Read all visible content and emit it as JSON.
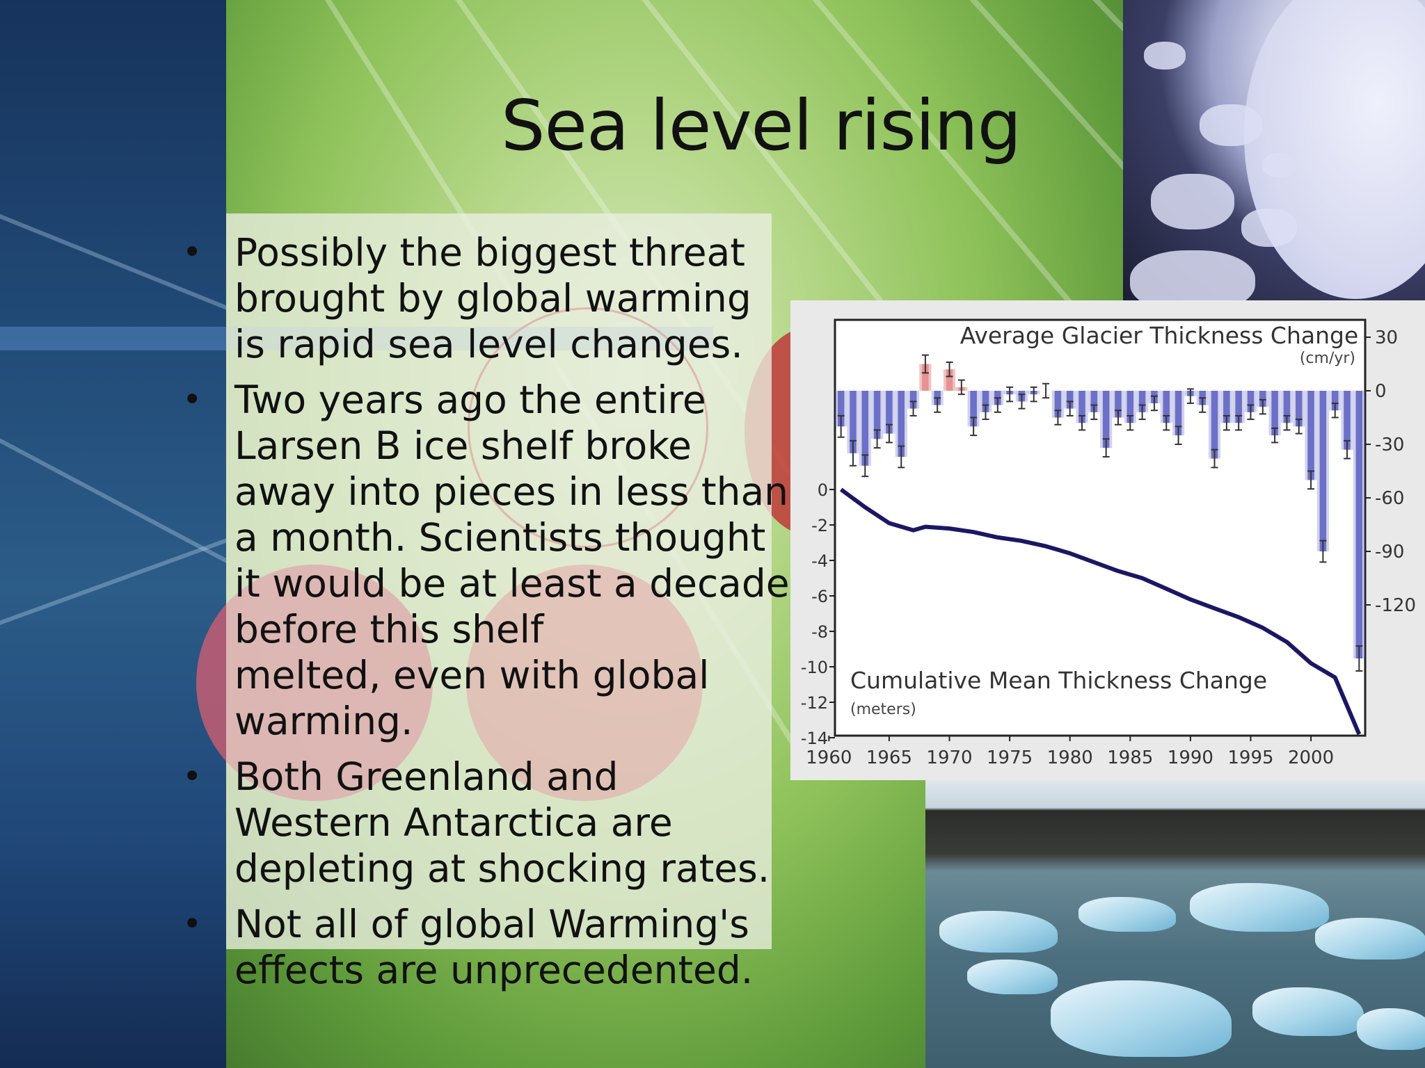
{
  "slide": {
    "title": "Sea level rising",
    "bullets": [
      {
        "text": "Possibly the biggest threat\nbrought by global warming\nis rapid sea level changes."
      },
      {
        "text": "Two years ago the entire\nLarsen B ice shelf broke\naway into pieces in less than\na month. Scientists thought\nit would be at least a decade\nbefore this shelf\nmelted, even with global\nwarming."
      },
      {
        "text": "Both Greenland and\nWestern Antarctica are\ndepleting at shocking rates."
      },
      {
        "text": "Not all of global Warming's\neffects are unprecedented."
      }
    ],
    "bullet_glyph": "•",
    "colors": {
      "accent_red": "#c0393a",
      "bar_negative": "#5a5fc0",
      "bar_positive": "#e48a8a",
      "line": "#1b1763"
    },
    "images": [
      {
        "name": "antarctic-ice-photo"
      },
      {
        "name": "floating-icebergs-photo"
      }
    ]
  },
  "chart_data": {
    "type": "bar",
    "title": "Average Glacier Thickness Change",
    "title_unit": "(cm/yr)",
    "secondary_title": "Cumulative Mean Thickness Change",
    "secondary_unit": "(meters)",
    "x_ticks": [
      "1960",
      "1965",
      "1970",
      "1975",
      "1980",
      "1985",
      "1990",
      "1995",
      "2000"
    ],
    "right_axis_ticks": [
      "30",
      "0",
      "-30",
      "-60",
      "-90",
      "-120"
    ],
    "left_axis_ticks": [
      "0",
      "-2",
      "-4",
      "-6",
      "-8",
      "-10",
      "-12",
      "-14"
    ],
    "ylim_right": [
      -140,
      35
    ],
    "ylim_left": [
      -14,
      0
    ],
    "years": [
      1961,
      1962,
      1963,
      1964,
      1965,
      1966,
      1967,
      1968,
      1969,
      1970,
      1971,
      1972,
      1973,
      1974,
      1975,
      1976,
      1977,
      1978,
      1979,
      1980,
      1981,
      1982,
      1983,
      1984,
      1985,
      1986,
      1987,
      1988,
      1989,
      1990,
      1991,
      1992,
      1993,
      1994,
      1995,
      1996,
      1997,
      1998,
      1999,
      2000,
      2001,
      2002,
      2003,
      2004
    ],
    "series": [
      {
        "name": "Average Glacier Thickness Change",
        "axis": "right",
        "values": [
          -20,
          -35,
          -42,
          -27,
          -24,
          -37,
          -10,
          15,
          -8,
          12,
          2,
          -20,
          -12,
          -8,
          -2,
          -6,
          -2,
          0,
          -15,
          -10,
          -18,
          -12,
          -32,
          -15,
          -18,
          -12,
          -7,
          -18,
          -25,
          -3,
          -8,
          -38,
          -18,
          -18,
          -12,
          -9,
          -25,
          -18,
          -20,
          -50,
          -90,
          -11,
          -33,
          -150
        ],
        "errors": [
          12,
          14,
          12,
          10,
          10,
          12,
          8,
          10,
          8,
          8,
          8,
          10,
          8,
          8,
          8,
          8,
          8,
          8,
          8,
          8,
          8,
          8,
          10,
          8,
          8,
          8,
          8,
          8,
          10,
          8,
          8,
          10,
          8,
          8,
          8,
          8,
          8,
          8,
          8,
          10,
          12,
          8,
          10,
          14
        ]
      },
      {
        "name": "Cumulative Mean Thickness Change",
        "axis": "left",
        "x": [
          1961,
          1963,
          1965,
          1967,
          1968,
          1970,
          1972,
          1974,
          1976,
          1978,
          1980,
          1982,
          1984,
          1986,
          1988,
          1990,
          1992,
          1994,
          1996,
          1998,
          2000,
          2002,
          2004
        ],
        "values": [
          0,
          -1.0,
          -1.9,
          -2.3,
          -2.1,
          -2.2,
          -2.4,
          -2.7,
          -2.9,
          -3.2,
          -3.6,
          -4.1,
          -4.6,
          -5.0,
          -5.6,
          -6.2,
          -6.7,
          -7.2,
          -7.8,
          -8.6,
          -9.8,
          -10.6,
          -13.8
        ]
      }
    ]
  }
}
